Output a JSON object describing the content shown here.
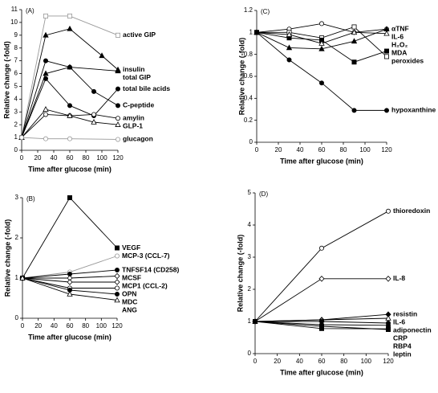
{
  "chart_data": [
    {
      "type": "line",
      "panel_label": "(A)",
      "xlabel": "Time after glucose (min)",
      "ylabel": "Relative change (-fold)",
      "xlim": [
        0,
        120
      ],
      "ylim": [
        0,
        11
      ],
      "xticks": [
        0,
        20,
        40,
        60,
        80,
        100,
        120
      ],
      "yticks": [
        0,
        1,
        2,
        3,
        4,
        5,
        6,
        7,
        8,
        9,
        10,
        11
      ],
      "series": [
        {
          "name": "active GIP",
          "color": "#999999",
          "marker": "square-open",
          "x": [
            0,
            30,
            60,
            120
          ],
          "values": [
            1,
            10.5,
            10.5,
            9
          ]
        },
        {
          "name": "insulin",
          "color": "#000000",
          "marker": "triangle",
          "x": [
            0,
            30,
            60,
            100,
            120
          ],
          "values": [
            1,
            9,
            9.5,
            7.4,
            6.3
          ]
        },
        {
          "name": "total GIP",
          "color": "#000000",
          "marker": "triangle",
          "x": [
            0,
            30,
            60,
            120
          ],
          "values": [
            1,
            6,
            6.5,
            6.2
          ]
        },
        {
          "name": "total bile acids",
          "color": "#000000",
          "marker": "circle",
          "x": [
            0,
            30,
            60,
            90,
            120
          ],
          "values": [
            1,
            5.6,
            3.5,
            2.7,
            4.8
          ]
        },
        {
          "name": "C-peptide",
          "color": "#000000",
          "marker": "circle",
          "x": [
            0,
            30,
            60,
            90,
            120
          ],
          "values": [
            1,
            7,
            6.5,
            4.6,
            3.5
          ]
        },
        {
          "name": "amylin",
          "color": "#000000",
          "marker": "circle-open",
          "x": [
            0,
            30,
            60,
            90,
            120
          ],
          "values": [
            1,
            2.8,
            2.7,
            2.8,
            2.5
          ]
        },
        {
          "name": "GLP-1",
          "color": "#000000",
          "marker": "triangle-open",
          "x": [
            0,
            30,
            60,
            90,
            120
          ],
          "values": [
            1,
            3.2,
            2.7,
            2.2,
            2
          ]
        },
        {
          "name": "glucagon",
          "color": "#999999",
          "marker": "circle-open",
          "x": [
            0,
            30,
            60,
            120
          ],
          "values": [
            1,
            0.9,
            0.9,
            0.85
          ]
        }
      ]
    },
    {
      "type": "line",
      "panel_label": "(B)",
      "xlabel": "Time after glucose (min)",
      "ylabel": "Relative change (-fold)",
      "xlim": [
        0,
        120
      ],
      "ylim": [
        0,
        3
      ],
      "xticks": [
        0,
        20,
        40,
        60,
        80,
        100,
        120
      ],
      "yticks": [
        0,
        1,
        2,
        3
      ],
      "series": [
        {
          "name": "VEGF",
          "color": "#000000",
          "marker": "square",
          "x": [
            0,
            60,
            120
          ],
          "values": [
            1,
            3,
            1.75
          ]
        },
        {
          "name": "MCP-3 (CCL-7)",
          "color": "#999999",
          "marker": "circle-open",
          "x": [
            0,
            60,
            120
          ],
          "values": [
            1,
            1.15,
            1.55
          ]
        },
        {
          "name": "TNFSF14 (CD258)",
          "color": "#000000",
          "marker": "circle",
          "x": [
            0,
            60,
            120
          ],
          "values": [
            1,
            1.1,
            1.2
          ]
        },
        {
          "name": "MCSF",
          "color": "#000000",
          "marker": "diamond-open",
          "x": [
            0,
            60,
            120
          ],
          "values": [
            1,
            1,
            1.05
          ]
        },
        {
          "name": "MCP1 (CCL-2)",
          "color": "#000000",
          "marker": "diamond-open",
          "x": [
            0,
            60,
            120
          ],
          "values": [
            1,
            0.9,
            0.9
          ]
        },
        {
          "name": "OPN",
          "color": "#000000",
          "marker": "circle-open",
          "x": [
            0,
            60,
            120
          ],
          "values": [
            1,
            0.75,
            0.75
          ]
        },
        {
          "name": "MDC",
          "color": "#000000",
          "marker": "circle",
          "x": [
            0,
            60,
            120
          ],
          "values": [
            1,
            0.7,
            0.6
          ]
        },
        {
          "name": "ANG",
          "color": "#000000",
          "marker": "triangle-open",
          "x": [
            0,
            60,
            120
          ],
          "values": [
            1,
            0.6,
            0.45
          ]
        }
      ]
    },
    {
      "type": "line",
      "panel_label": "(C)",
      "xlabel": "Time after glucose (min)",
      "ylabel": "Relative change (-fold)",
      "xlim": [
        0,
        120
      ],
      "ylim": [
        0,
        1.2
      ],
      "xticks": [
        0,
        20,
        40,
        60,
        80,
        100,
        120
      ],
      "yticks": [
        0,
        0.2,
        0.4,
        0.6,
        0.8,
        1,
        1.2
      ],
      "series": [
        {
          "name": "αTNF",
          "color": "#000000",
          "marker": "circle-open",
          "x": [
            0,
            30,
            60,
            90,
            120
          ],
          "values": [
            1,
            1.03,
            1.08,
            1,
            1.03
          ]
        },
        {
          "name": "peroxides",
          "color": "#000000",
          "marker": "square-open",
          "x": [
            0,
            30,
            60,
            90,
            120
          ],
          "values": [
            1,
            1,
            0.95,
            1.05,
            0.78
          ]
        },
        {
          "name": "MDA",
          "color": "#000000",
          "marker": "square",
          "x": [
            0,
            30,
            60,
            90,
            120
          ],
          "values": [
            1,
            0.95,
            0.93,
            0.73,
            0.83
          ]
        },
        {
          "name": "H₂O₂",
          "color": "#000000",
          "marker": "triangle-open",
          "x": [
            0,
            30,
            60,
            90,
            120
          ],
          "values": [
            1,
            0.98,
            0.9,
            1,
            0.99
          ]
        },
        {
          "name": "IL-6",
          "color": "#000000",
          "marker": "triangle",
          "x": [
            0,
            30,
            60,
            90,
            120
          ],
          "values": [
            1,
            0.86,
            0.85,
            0.92,
            1.03
          ]
        },
        {
          "name": "hypoxanthine",
          "color": "#000000",
          "marker": "circle",
          "x": [
            0,
            30,
            60,
            90,
            120
          ],
          "values": [
            1,
            0.75,
            0.54,
            0.29,
            0.29
          ]
        }
      ]
    },
    {
      "type": "line",
      "panel_label": "(D)",
      "xlabel": "Time after glucose (min)",
      "ylabel": "Relative change (-fold)",
      "xlim": [
        0,
        120
      ],
      "ylim": [
        0,
        5
      ],
      "xticks": [
        0,
        20,
        40,
        60,
        80,
        100,
        120
      ],
      "yticks": [
        0,
        1,
        2,
        3,
        4,
        5
      ],
      "series": [
        {
          "name": "thioredoxin",
          "color": "#000000",
          "marker": "circle-open",
          "x": [
            0,
            60,
            120
          ],
          "values": [
            1,
            3.28,
            4.43
          ]
        },
        {
          "name": "IL-8",
          "color": "#000000",
          "marker": "diamond-open",
          "x": [
            0,
            60,
            120
          ],
          "values": [
            1,
            2.33,
            2.33
          ]
        },
        {
          "name": "resistin",
          "color": "#000000",
          "marker": "diamond",
          "x": [
            0,
            60,
            120
          ],
          "values": [
            1,
            1.05,
            1.22
          ]
        },
        {
          "name": "IL-6",
          "color": "#000000",
          "marker": "triangle-open",
          "x": [
            0,
            60,
            120
          ],
          "values": [
            1,
            1.05,
            1.1
          ]
        },
        {
          "name": "adiponectin",
          "color": "#000000",
          "marker": "circle",
          "x": [
            0,
            60,
            120
          ],
          "values": [
            1,
            1,
            0.95
          ]
        },
        {
          "name": "CRP",
          "color": "#000000",
          "marker": "circle",
          "x": [
            0,
            60,
            120
          ],
          "values": [
            1,
            0.9,
            0.88
          ]
        },
        {
          "name": "leptin",
          "color": "#000000",
          "marker": "square",
          "x": [
            0,
            60,
            120
          ],
          "values": [
            1,
            0.85,
            0.75
          ]
        },
        {
          "name": "RBP4",
          "color": "#000000",
          "marker": "square",
          "x": [
            0,
            60,
            120
          ],
          "values": [
            1,
            0.78,
            0.77
          ]
        }
      ]
    }
  ]
}
